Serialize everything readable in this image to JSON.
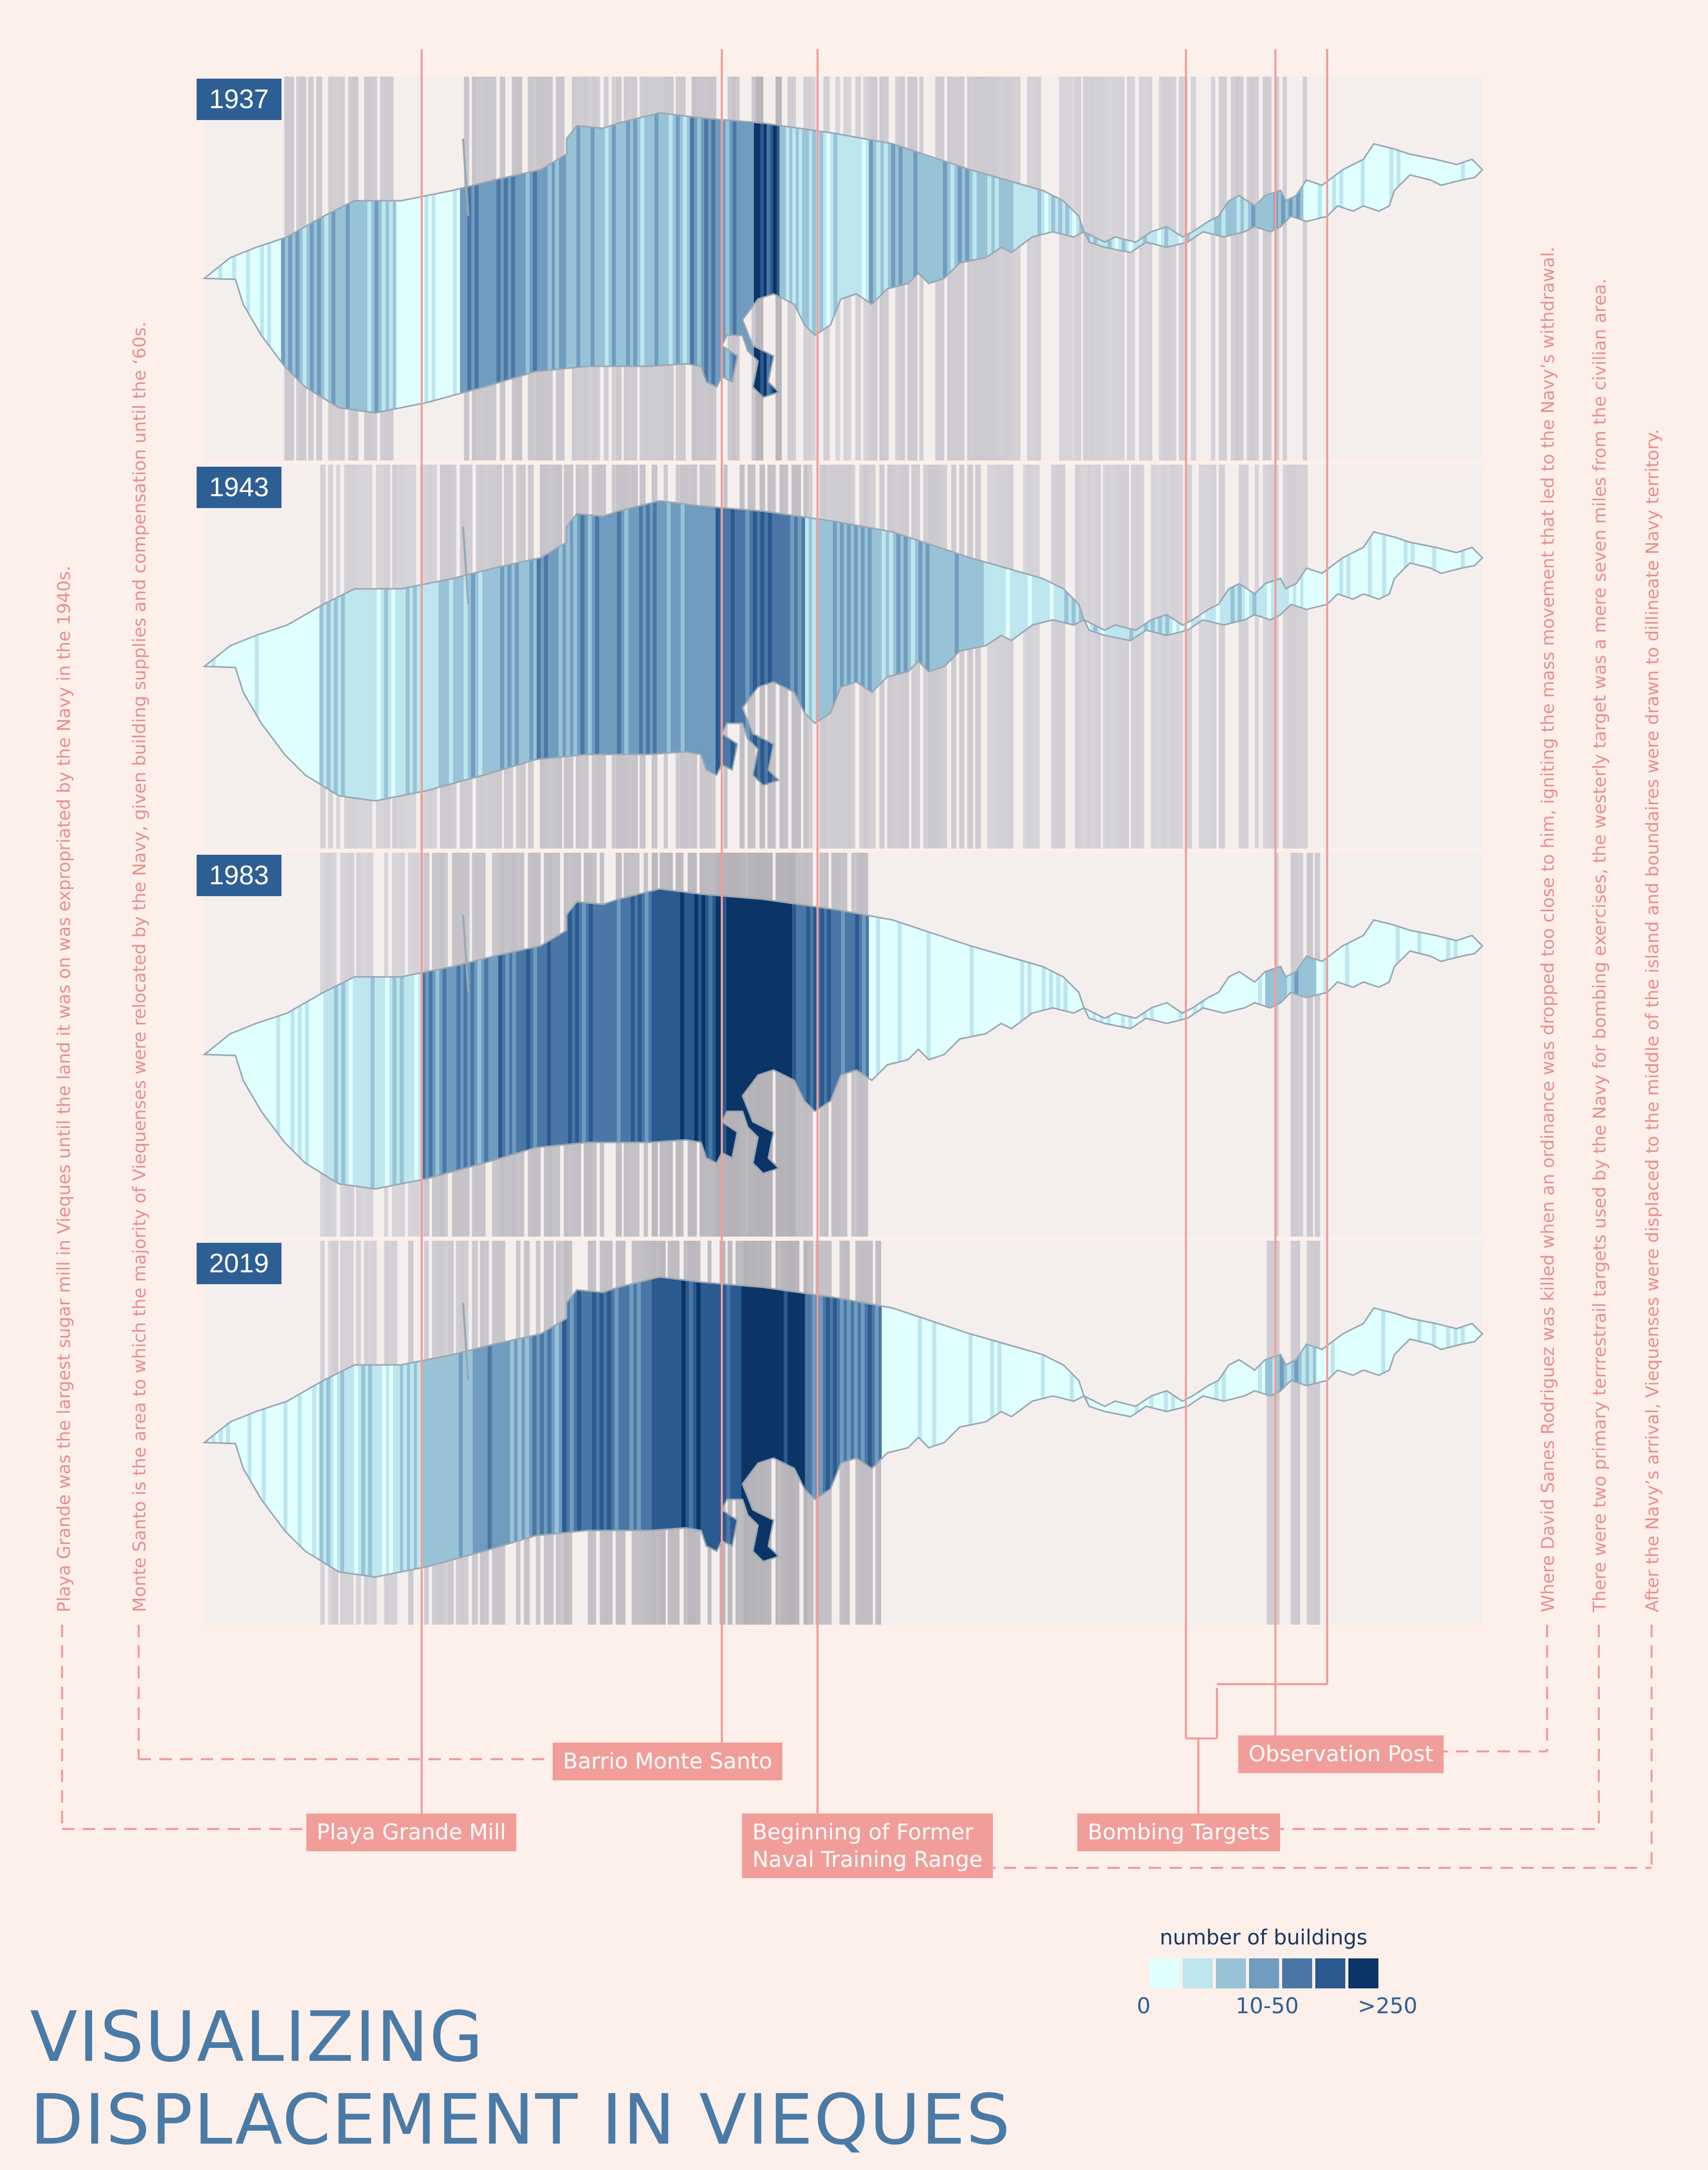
{
  "title_lines": [
    "VISUALIZING",
    "DISPLACEMENT IN VIEQUES"
  ],
  "panels": [
    {
      "year": "1937"
    },
    {
      "year": "1943"
    },
    {
      "year": "1983"
    },
    {
      "year": "2019"
    }
  ],
  "callouts": {
    "playa_grande": "Playa Grande Mill",
    "monte_santo": "Barrio Monte Santo",
    "naval_range": [
      "Beginning of Former",
      "Naval Training Range"
    ],
    "bombing": "Bombing Targets",
    "observation": "Observation Post"
  },
  "notes": {
    "playa_grande": "Playa Grande was the largest sugar mill in Vieques until the land it was on was expropriated by the Navy in the 1940s.",
    "monte_santo": "Monte Santo is the area to which the majority of Viequenses were relocated by the Navy, given building supplies and compensation until the ‘60s.",
    "observation": "Where David Sanes Rodriguez was killed when an ordinance was dropped too close to him, igniting the mass movement that led to the Navy’s withdrawal.",
    "bombing": "There were two primary terrrestrail targets used by the Navy for bombing exercises, the westerly target was a mere seven miles from the civilian area.",
    "naval_range": "After the Navy’s arrival, Viequenses were displaced to the middle of the island and boundaires were drawn to dillineate Navy territory."
  },
  "legend": {
    "title": "number of buildings",
    "label_low": "0",
    "label_mid": "10-50",
    "label_high": ">250",
    "colors": [
      "#e0ffff",
      "#bde6ef",
      "#98c3d6",
      "#6f9cbf",
      "#4a77a5",
      "#2a5a8f",
      "#0b3566"
    ]
  },
  "colors": {
    "background": "#fdefea",
    "accent_line": "#f19e9a",
    "island_outline": "#9aa7b3"
  },
  "chart_data": {
    "type": "heatmap",
    "title": "VISUALIZING DISPLACEMENT IN VIEQUES",
    "xlabel": "",
    "ylabel": "",
    "value_label": "number of buildings",
    "categories": [
      "1937",
      "1943",
      "1983",
      "2019"
    ],
    "color_scale": {
      "min_label": "0",
      "mid_label": "10-50",
      "max_label": ">250",
      "bins": 7
    },
    "x_domain": [
      0,
      100
    ],
    "series": [
      {
        "name": "1937",
        "segments": [
          {
            "start": 0,
            "end": 6,
            "level": 0
          },
          {
            "start": 6,
            "end": 15,
            "level": 2
          },
          {
            "start": 15,
            "end": 20,
            "level": 0
          },
          {
            "start": 20,
            "end": 28,
            "level": 3
          },
          {
            "start": 28,
            "end": 38,
            "level": 2
          },
          {
            "start": 38,
            "end": 43,
            "level": 3
          },
          {
            "start": 43,
            "end": 44,
            "level": 6
          },
          {
            "start": 44,
            "end": 45,
            "level": 5
          },
          {
            "start": 45,
            "end": 47,
            "level": 2
          },
          {
            "start": 47,
            "end": 52,
            "level": 1
          },
          {
            "start": 52,
            "end": 63,
            "level": 2
          },
          {
            "start": 63,
            "end": 69,
            "level": 1
          },
          {
            "start": 69,
            "end": 79,
            "level": 1
          },
          {
            "start": 79,
            "end": 86,
            "level": 2
          },
          {
            "start": 86,
            "end": 100,
            "level": 0
          }
        ]
      },
      {
        "name": "1943",
        "segments": [
          {
            "start": 0,
            "end": 9,
            "level": 0
          },
          {
            "start": 9,
            "end": 18,
            "level": 1
          },
          {
            "start": 18,
            "end": 26,
            "level": 2
          },
          {
            "start": 26,
            "end": 34,
            "level": 3
          },
          {
            "start": 34,
            "end": 40,
            "level": 3
          },
          {
            "start": 40,
            "end": 47,
            "level": 4
          },
          {
            "start": 47,
            "end": 53,
            "level": 2
          },
          {
            "start": 53,
            "end": 61,
            "level": 2
          },
          {
            "start": 61,
            "end": 69,
            "level": 1
          },
          {
            "start": 69,
            "end": 78,
            "level": 1
          },
          {
            "start": 78,
            "end": 86,
            "level": 1
          },
          {
            "start": 86,
            "end": 100,
            "level": 0
          }
        ]
      },
      {
        "name": "1983",
        "segments": [
          {
            "start": 0,
            "end": 9,
            "level": 0
          },
          {
            "start": 9,
            "end": 17,
            "level": 1
          },
          {
            "start": 17,
            "end": 23,
            "level": 3
          },
          {
            "start": 23,
            "end": 29,
            "level": 4
          },
          {
            "start": 29,
            "end": 35,
            "level": 4
          },
          {
            "start": 35,
            "end": 40,
            "level": 5
          },
          {
            "start": 40,
            "end": 46,
            "level": 6
          },
          {
            "start": 46,
            "end": 52,
            "level": 4
          },
          {
            "start": 52,
            "end": 83,
            "level": 0
          },
          {
            "start": 83,
            "end": 87,
            "level": 2
          },
          {
            "start": 87,
            "end": 100,
            "level": 0
          }
        ]
      },
      {
        "name": "2019",
        "segments": [
          {
            "start": 0,
            "end": 9,
            "level": 0
          },
          {
            "start": 9,
            "end": 15,
            "level": 1
          },
          {
            "start": 15,
            "end": 21,
            "level": 2
          },
          {
            "start": 21,
            "end": 28,
            "level": 3
          },
          {
            "start": 28,
            "end": 35,
            "level": 4
          },
          {
            "start": 35,
            "end": 42,
            "level": 5
          },
          {
            "start": 42,
            "end": 47,
            "level": 6
          },
          {
            "start": 47,
            "end": 53,
            "level": 4
          },
          {
            "start": 53,
            "end": 83,
            "level": 0
          },
          {
            "start": 83,
            "end": 87,
            "level": 2
          },
          {
            "start": 87,
            "end": 100,
            "level": 0
          }
        ]
      }
    ]
  }
}
